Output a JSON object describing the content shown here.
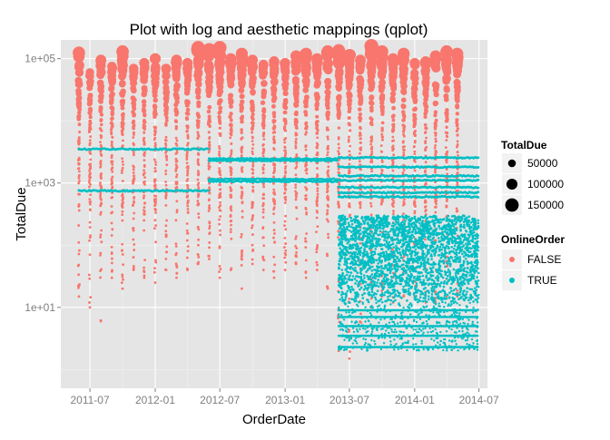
{
  "chart_data": {
    "type": "scatter",
    "title": "Plot with log and aesthetic mappings (qplot)",
    "xlabel": "OrderDate",
    "ylabel": "TotalDue",
    "x_range": [
      "2011-04-10",
      "2014-07-25"
    ],
    "x_ticks": [
      "2011-07",
      "2012-01",
      "2012-07",
      "2013-01",
      "2013-07",
      "2014-01",
      "2014-07"
    ],
    "x_tick_dates": [
      "2011-07-01",
      "2012-01-01",
      "2012-07-01",
      "2013-01-01",
      "2013-07-01",
      "2014-01-01",
      "2014-07-01"
    ],
    "y_scale": "log10",
    "y_range": [
      0.5,
      200000
    ],
    "y_ticks": [
      "1e+01",
      "1e+03",
      "1e+05"
    ],
    "y_tick_values": [
      10,
      1000,
      100000
    ],
    "grid": true,
    "background": "#e5e5e5",
    "legend_position": "right",
    "size_legend": {
      "title": "TotalDue",
      "entries": [
        {
          "label": "50000",
          "value": 50000
        },
        {
          "label": "100000",
          "value": 100000
        },
        {
          "label": "150000",
          "value": 150000
        }
      ]
    },
    "color_legend": {
      "title": "OnlineOrder",
      "entries": [
        {
          "label": "FALSE",
          "color": "#f8766d"
        },
        {
          "label": "TRUE",
          "color": "#00bfc4"
        }
      ]
    },
    "series": [
      {
        "name": "FALSE",
        "color": "#f8766d",
        "monthly_batches": [
          {
            "date": "2011-05-31",
            "max": 125000,
            "min": 15
          },
          {
            "date": "2011-07-01",
            "max": 60000,
            "min": 10
          },
          {
            "date": "2011-08-01",
            "max": 95000,
            "min": 6
          },
          {
            "date": "2011-09-01",
            "max": 75000,
            "min": 30
          },
          {
            "date": "2011-10-01",
            "max": 130000,
            "min": 20
          },
          {
            "date": "2011-11-01",
            "max": 70000,
            "min": 40
          },
          {
            "date": "2011-12-01",
            "max": 85000,
            "min": 30
          },
          {
            "date": "2012-01-01",
            "max": 100000,
            "min": 25
          },
          {
            "date": "2012-02-01",
            "max": 70000,
            "min": 40
          },
          {
            "date": "2012-03-01",
            "max": 95000,
            "min": 30
          },
          {
            "date": "2012-04-01",
            "max": 85000,
            "min": 40
          },
          {
            "date": "2012-05-01",
            "max": 150000,
            "min": 50
          },
          {
            "date": "2012-06-01",
            "max": 140000,
            "min": 60
          },
          {
            "date": "2012-07-01",
            "max": 150000,
            "min": 30
          },
          {
            "date": "2012-08-01",
            "max": 100000,
            "min": 40
          },
          {
            "date": "2012-09-01",
            "max": 120000,
            "min": 20
          },
          {
            "date": "2012-10-01",
            "max": 95000,
            "min": 50
          },
          {
            "date": "2012-11-01",
            "max": 80000,
            "min": 40
          },
          {
            "date": "2012-12-01",
            "max": 90000,
            "min": 30
          },
          {
            "date": "2013-01-01",
            "max": 85000,
            "min": 40
          },
          {
            "date": "2013-02-01",
            "max": 110000,
            "min": 50
          },
          {
            "date": "2013-03-01",
            "max": 120000,
            "min": 30
          },
          {
            "date": "2013-04-01",
            "max": 100000,
            "min": 40
          },
          {
            "date": "2013-05-01",
            "max": 130000,
            "min": 20
          },
          {
            "date": "2013-06-01",
            "max": 135000,
            "min": 2
          },
          {
            "date": "2013-07-01",
            "max": 115000,
            "min": 1.5
          },
          {
            "date": "2013-08-01",
            "max": 95000,
            "min": 5
          },
          {
            "date": "2013-09-01",
            "max": 160000,
            "min": 10
          },
          {
            "date": "2013-10-01",
            "max": 130000,
            "min": 15
          },
          {
            "date": "2013-11-01",
            "max": 100000,
            "min": 12
          },
          {
            "date": "2013-12-01",
            "max": 120000,
            "min": 15
          },
          {
            "date": "2014-01-01",
            "max": 85000,
            "min": 15
          },
          {
            "date": "2014-02-01",
            "max": 90000,
            "min": 12
          },
          {
            "date": "2014-03-01",
            "max": 110000,
            "min": 12
          },
          {
            "date": "2014-04-01",
            "max": 130000,
            "min": 15
          },
          {
            "date": "2014-05-01",
            "max": 120000,
            "min": 15
          }
        ]
      },
      {
        "name": "TRUE",
        "color": "#00bfc4",
        "bands": [
          {
            "start": "2011-05-31",
            "end": "2012-05-31",
            "values": [
              3500,
              750
            ]
          },
          {
            "start": "2012-06-01",
            "end": "2013-05-31",
            "values": [
              2450,
              2300,
              1150,
              1060
            ]
          },
          {
            "start": "2013-06-01",
            "end": "2014-06-30",
            "values": [
              2550,
              1800,
              1300,
              1100,
              850,
              700,
              600
            ]
          }
        ],
        "cloud": {
          "start": "2013-06-01",
          "end": "2014-06-30",
          "min": 2,
          "max": 300
        },
        "low_bands": [
          {
            "start": "2013-06-01",
            "end": "2014-06-30",
            "values": [
              9,
              7,
              5,
              3.5,
              2.3
            ]
          }
        ]
      }
    ]
  }
}
